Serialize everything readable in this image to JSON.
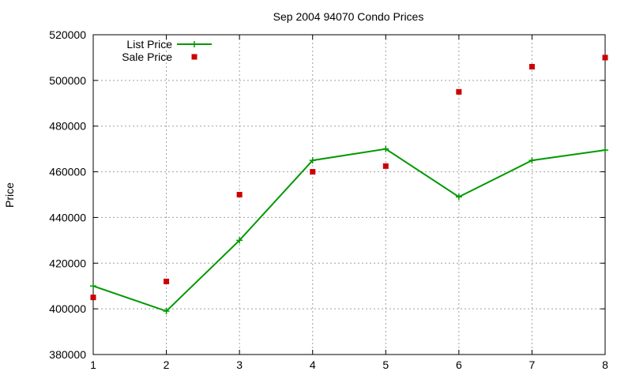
{
  "chart_data": {
    "type": "line",
    "title": "Sep 2004 94070 Condo Prices",
    "xlabel": "",
    "ylabel": "Price",
    "x": [
      1,
      2,
      3,
      4,
      5,
      6,
      7,
      8
    ],
    "xlim": [
      1,
      8
    ],
    "ylim": [
      380000,
      520000
    ],
    "x_ticks": [
      "1",
      "2",
      "3",
      "4",
      "5",
      "6",
      "7",
      "8"
    ],
    "y_ticks": [
      "380000",
      "400000",
      "420000",
      "440000",
      "460000",
      "480000",
      "500000",
      "520000"
    ],
    "grid": true,
    "legend_position": "top-left",
    "series": [
      {
        "name": "List Price",
        "style": "line-with-plus-markers",
        "color": "#009900",
        "values": [
          410000,
          399000,
          430000,
          465000,
          470000,
          449000,
          465000,
          469500
        ]
      },
      {
        "name": "Sale Price",
        "style": "square-points",
        "color": "#cc0000",
        "values": [
          405000,
          412000,
          450000,
          460000,
          462500,
          495000,
          506000,
          510000
        ]
      }
    ]
  }
}
